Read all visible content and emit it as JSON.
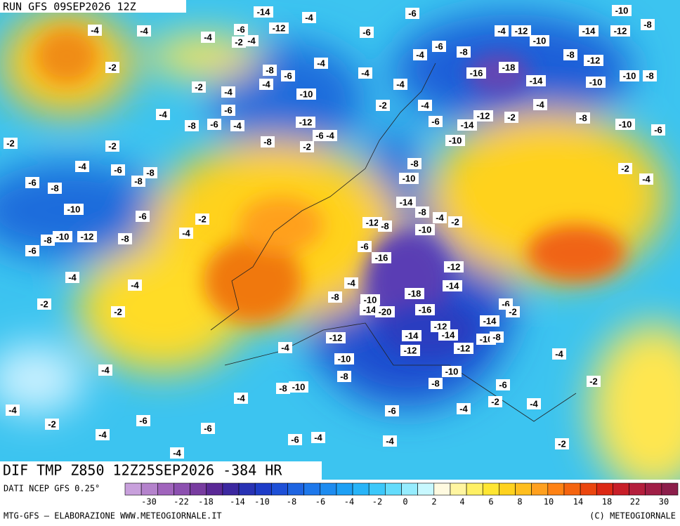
{
  "header": {
    "run": "RUN GFS 09SEP2026 12Z"
  },
  "map": {
    "title": "DIF TMP Z850 12Z25SEP2026 -384 HR",
    "contour_labels": [
      -4,
      -4,
      -2,
      -4,
      -6,
      -2,
      -4,
      -14,
      -12,
      -4,
      -6,
      -6,
      -4,
      -6,
      -8,
      -4,
      -12,
      -10,
      -14,
      -12,
      -10,
      -8,
      -8,
      -12,
      -10,
      -10,
      -8,
      -16,
      -18,
      -14,
      -4,
      -12,
      -2,
      -14,
      -8,
      -10,
      -6,
      -10,
      -6,
      -4,
      -4,
      -2,
      -4,
      -4,
      -6,
      -8,
      -4,
      -10,
      -4,
      -2,
      -4,
      -8,
      -6,
      -4,
      -6,
      -8,
      -12,
      -6,
      -4,
      -2,
      -2,
      -2,
      -4,
      -6,
      -8,
      -8,
      -6,
      -8,
      -10,
      -6,
      -2,
      -4,
      -10,
      -12,
      -8,
      -6,
      -8,
      -4,
      -4,
      -2,
      -2,
      -8,
      -10,
      -14,
      -8,
      -4,
      -2,
      -12,
      -8,
      -10,
      -6,
      -16,
      -12,
      -14,
      -4,
      -8,
      -10,
      -14,
      -18,
      -20,
      -16,
      -6,
      -2,
      -14,
      -12,
      -14,
      -14,
      -10,
      -8,
      -12,
      -12,
      -12,
      -4,
      -10,
      -8,
      -10,
      -8,
      -6,
      -4,
      -2,
      -4,
      -8,
      -10,
      -4,
      -4,
      -2,
      -6,
      -4,
      -6,
      -6,
      -4,
      -2,
      -4,
      -6,
      -4,
      -4,
      -2,
      -4,
      -4,
      -2
    ]
  },
  "legend": {
    "source": "DATI NCEP GFS 0.25°",
    "ticks": [
      -30,
      -22,
      -18,
      -14,
      -10,
      -8,
      -6,
      -4,
      -2,
      0,
      2,
      4,
      6,
      8,
      10,
      14,
      18,
      22,
      30
    ]
  },
  "footer": {
    "left": "MTG-GFS — ELABORAZIONE WWW.METEOGIORNALE.IT",
    "right": "(C) METEOGIORNALE"
  }
}
